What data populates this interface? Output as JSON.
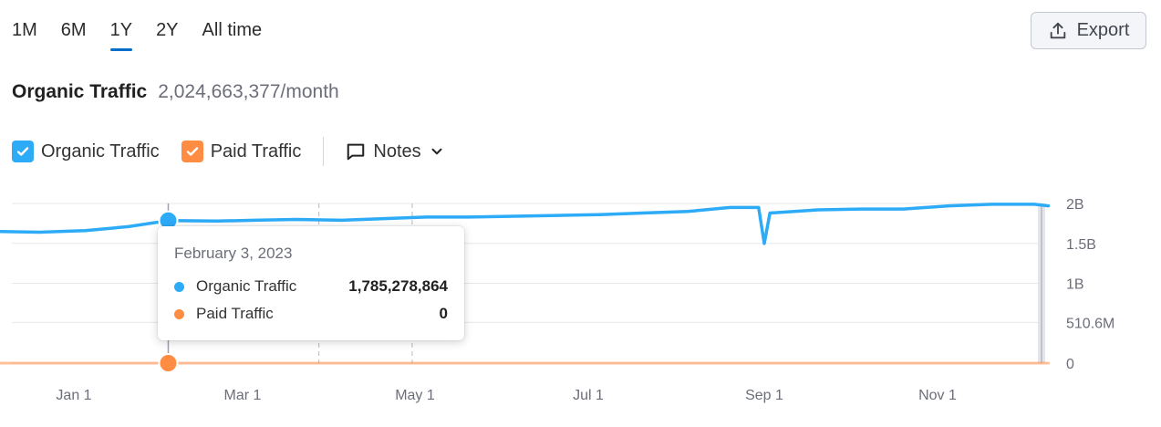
{
  "tabs": [
    {
      "label": "1M",
      "active": false
    },
    {
      "label": "6M",
      "active": false
    },
    {
      "label": "1Y",
      "active": true
    },
    {
      "label": "2Y",
      "active": false
    },
    {
      "label": "All time",
      "active": false
    }
  ],
  "export": {
    "label": "Export",
    "icon": "upload-icon"
  },
  "headline": {
    "title": "Organic Traffic",
    "value": "2,024,663,377/month"
  },
  "legend": {
    "organic": {
      "label": "Organic Traffic",
      "checked": true,
      "color": "#2dabf7"
    },
    "paid": {
      "label": "Paid Traffic",
      "checked": true,
      "color": "#ff8c43"
    },
    "notes": {
      "label": "Notes",
      "icon": "comment-icon"
    }
  },
  "tooltip": {
    "date": "February 3, 2023",
    "rows": [
      {
        "label": "Organic Traffic",
        "value": "1,785,278,864",
        "color": "#2dabf7"
      },
      {
        "label": "Paid Traffic",
        "value": "0",
        "color": "#ff8c43"
      }
    ]
  },
  "chart_data": {
    "type": "line",
    "x_ticks": [
      "Jan 1",
      "Mar 1",
      "May 1",
      "Jul 1",
      "Sep 1",
      "Nov 1"
    ],
    "y_ticks": [
      "2B",
      "1.5B",
      "1B",
      "510.6M",
      "0"
    ],
    "ylim": [
      0,
      2000000000
    ],
    "grid": true,
    "series": [
      {
        "name": "Organic Traffic",
        "color": "#2dabf7",
        "points": [
          [
            "2022-12-04",
            1650000000
          ],
          [
            "2022-12-20",
            1640000000
          ],
          [
            "2023-01-05",
            1660000000
          ],
          [
            "2023-01-20",
            1710000000
          ],
          [
            "2023-02-03",
            1785278864
          ],
          [
            "2023-02-20",
            1780000000
          ],
          [
            "2023-03-05",
            1790000000
          ],
          [
            "2023-03-20",
            1800000000
          ],
          [
            "2023-04-05",
            1790000000
          ],
          [
            "2023-04-20",
            1810000000
          ],
          [
            "2023-05-05",
            1830000000
          ],
          [
            "2023-05-20",
            1830000000
          ],
          [
            "2023-06-05",
            1840000000
          ],
          [
            "2023-06-20",
            1850000000
          ],
          [
            "2023-07-05",
            1860000000
          ],
          [
            "2023-07-20",
            1880000000
          ],
          [
            "2023-08-05",
            1900000000
          ],
          [
            "2023-08-20",
            1950000000
          ],
          [
            "2023-08-30",
            1950000000
          ],
          [
            "2023-09-01",
            1500000000
          ],
          [
            "2023-09-03",
            1880000000
          ],
          [
            "2023-09-20",
            1920000000
          ],
          [
            "2023-10-05",
            1930000000
          ],
          [
            "2023-10-20",
            1930000000
          ],
          [
            "2023-11-05",
            1970000000
          ],
          [
            "2023-11-20",
            1990000000
          ],
          [
            "2023-12-05",
            1990000000
          ],
          [
            "2023-12-10",
            1970000000
          ]
        ]
      },
      {
        "name": "Paid Traffic",
        "color": "#ff8c43",
        "points": [
          [
            "2022-12-04",
            0
          ],
          [
            "2023-02-03",
            0
          ],
          [
            "2023-12-10",
            0
          ]
        ]
      }
    ],
    "marker_date": "2023-02-03",
    "note_dates": [
      "2023-03-28",
      "2023-04-30"
    ]
  }
}
